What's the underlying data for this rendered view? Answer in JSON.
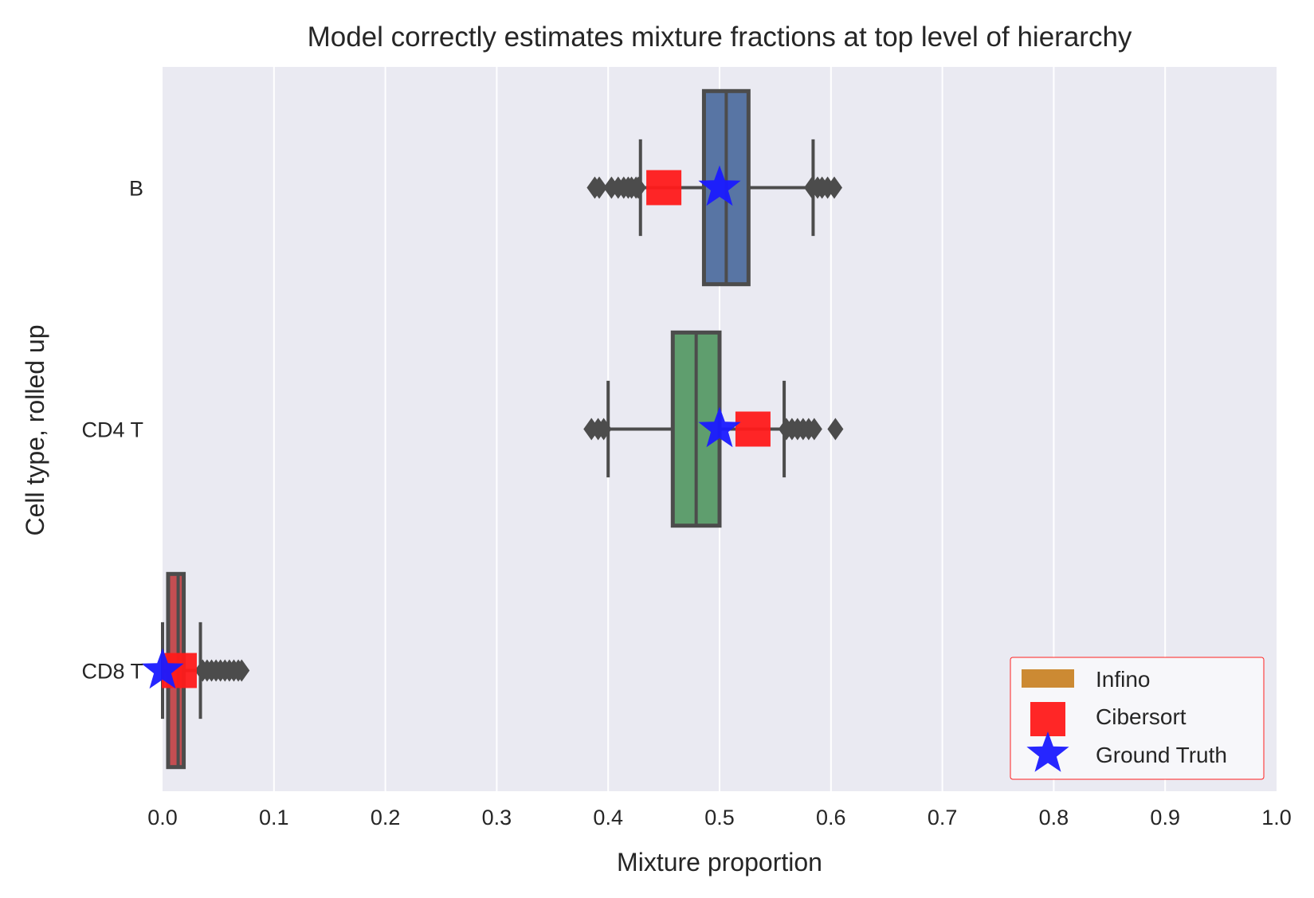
{
  "chart_data": {
    "type": "box",
    "orientation": "horizontal",
    "title": "Model correctly estimates mixture fractions at top level of hierarchy",
    "xlabel": "Mixture proportion",
    "ylabel": "Cell type, rolled up",
    "xlim": [
      0.0,
      1.0
    ],
    "xticks": [
      "0.0",
      "0.1",
      "0.2",
      "0.3",
      "0.4",
      "0.5",
      "0.6",
      "0.7",
      "0.8",
      "0.9",
      "1.0"
    ],
    "categories": [
      "B",
      "CD4 T",
      "CD8 T"
    ],
    "grid": "vertical",
    "legend_position": "lower-right",
    "legend": [
      {
        "label": "Infino",
        "marker": "patch",
        "color": "#cc8a33"
      },
      {
        "label": "Cibersort",
        "marker": "square",
        "color": "#ff1a1a"
      },
      {
        "label": "Ground Truth",
        "marker": "star",
        "color": "#1a1aff"
      }
    ],
    "boxes": [
      {
        "category": "B",
        "color": "#5875a4",
        "q1": 0.486,
        "median": 0.506,
        "q3": 0.526,
        "whisker_low": 0.429,
        "whisker_high": 0.584,
        "outliers": [
          0.388,
          0.392,
          0.403,
          0.409,
          0.414,
          0.418,
          0.421,
          0.425,
          0.427,
          0.583,
          0.588,
          0.592,
          0.597,
          0.603
        ]
      },
      {
        "category": "CD4 T",
        "color": "#5f9e6e",
        "q1": 0.458,
        "median": 0.479,
        "q3": 0.5,
        "whisker_low": 0.4,
        "whisker_high": 0.558,
        "outliers": [
          0.385,
          0.391,
          0.396,
          0.56,
          0.565,
          0.57,
          0.575,
          0.58,
          0.585,
          0.604
        ]
      },
      {
        "category": "CD8 T",
        "color": "#c44e52",
        "q1": 0.005,
        "median": 0.014,
        "q3": 0.019,
        "whisker_low": 0.0,
        "whisker_high": 0.034,
        "outliers": [
          0.036,
          0.04,
          0.044,
          0.048,
          0.052,
          0.056,
          0.06,
          0.064,
          0.068,
          0.071
        ]
      }
    ],
    "cibersort": [
      {
        "category": "B",
        "value": 0.45
      },
      {
        "category": "CD4 T",
        "value": 0.53
      },
      {
        "category": "CD8 T",
        "value": 0.015
      }
    ],
    "ground_truth": [
      {
        "category": "B",
        "value": 0.5
      },
      {
        "category": "CD4 T",
        "value": 0.5
      },
      {
        "category": "CD8 T",
        "value": 0.0
      }
    ]
  }
}
